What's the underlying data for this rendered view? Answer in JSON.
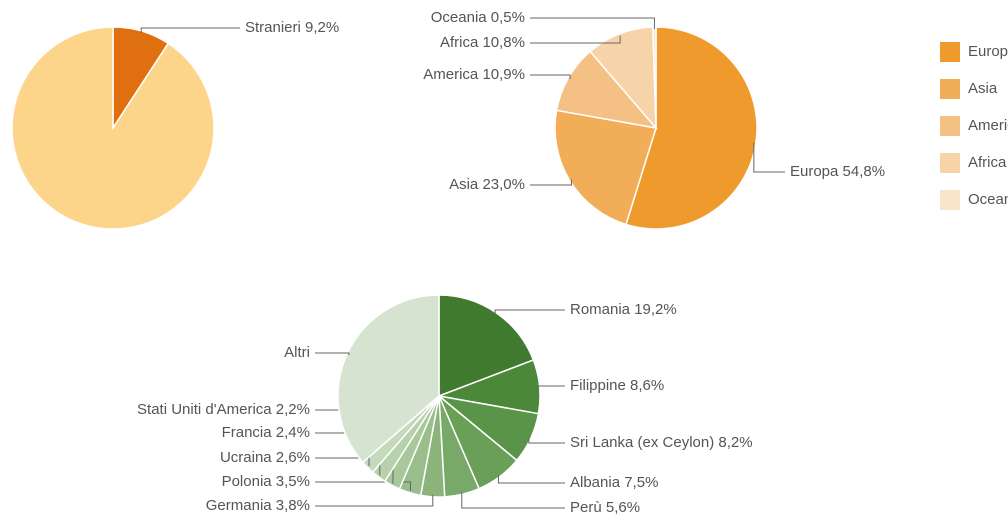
{
  "chart_data": [
    {
      "type": "pie",
      "categories": [
        "Stranieri",
        null
      ],
      "values": [
        9.2,
        90.8
      ],
      "value_labels": [
        "9,2%",
        null
      ],
      "colors": [
        "#e0700f",
        "#fdd58a"
      ]
    },
    {
      "type": "pie",
      "categories": [
        "Europa",
        "Asia",
        "America",
        "Africa",
        "Oceania"
      ],
      "values": [
        54.8,
        23.0,
        10.9,
        10.8,
        0.5
      ],
      "value_labels": [
        "54,8%",
        "23,0%",
        "10,9%",
        "10,8%",
        "0,5%"
      ],
      "colors": [
        "#ef9a2c",
        "#f2ad58",
        "#f4c083",
        "#f7d3a9",
        "#fae4ca"
      ],
      "legend": "right"
    },
    {
      "type": "pie",
      "categories": [
        "Romania",
        "Filippine",
        "Sri Lanka (ex Ceylon)",
        "Albania",
        "Perù",
        "Germania",
        "Polonia",
        "Ucraina",
        "Francia",
        "Stati Uniti d'America",
        "Altri"
      ],
      "values": [
        19.2,
        8.6,
        8.2,
        7.5,
        5.6,
        3.8,
        3.5,
        2.6,
        2.4,
        2.2,
        36.4
      ],
      "value_labels": [
        "19,2%",
        "8,6%",
        "8,2%",
        "7,5%",
        "5,6%",
        "3,8%",
        "3,5%",
        "2,6%",
        "2,4%",
        "2,2%",
        null
      ],
      "colors": [
        "#3f7a2e",
        "#4b8839",
        "#5a9448",
        "#6a9f58",
        "#79a968",
        "#8ab47a",
        "#99be8b",
        "#a8c89c",
        "#b6d1ab",
        "#c4dabb",
        "#d6e3d0"
      ]
    }
  ]
}
